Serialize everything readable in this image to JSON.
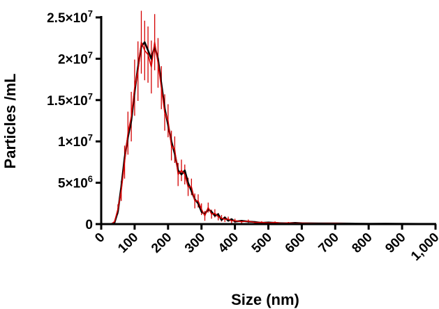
{
  "chart_data": {
    "type": "line",
    "xlabel": "Size (nm)",
    "ylabel": "Particles /mL",
    "xlim": [
      0,
      1000
    ],
    "ylim": [
      0,
      25000000
    ],
    "x_ticks": [
      0,
      100,
      200,
      300,
      400,
      500,
      600,
      700,
      800,
      900,
      1000
    ],
    "x_tick_labels": [
      "0",
      "100",
      "200",
      "300",
      "400",
      "500",
      "600",
      "700",
      "800",
      "900",
      "1,000"
    ],
    "y_ticks": [
      0,
      5000000,
      10000000,
      15000000,
      20000000,
      25000000
    ],
    "y_tick_labels": [
      "0",
      "5×10",
      "1×10",
      "1.5×10",
      "2×10",
      "2.5×10"
    ],
    "y_tick_exponents": [
      "",
      "6",
      "7",
      "7",
      "7",
      "7"
    ],
    "grid": false,
    "series": [
      {
        "color": "#000000",
        "x": [
          0,
          30,
          40,
          50,
          60,
          70,
          80,
          90,
          100,
          110,
          120,
          130,
          140,
          150,
          160,
          170,
          180,
          190,
          200,
          210,
          220,
          230,
          240,
          250,
          260,
          270,
          280,
          290,
          300,
          310,
          320,
          330,
          340,
          350,
          360,
          370,
          380,
          390,
          400,
          420,
          440,
          460,
          480,
          500,
          520,
          540,
          560,
          580,
          600,
          650,
          700,
          750,
          800,
          850,
          900,
          950,
          1000
        ],
        "y": [
          0,
          0,
          200000,
          1500000,
          4500000,
          8000000,
          10500000,
          12500000,
          16000000,
          19000000,
          21500000,
          22000000,
          21000000,
          20000000,
          21500000,
          20000000,
          17000000,
          14000000,
          12000000,
          10000000,
          8500000,
          6500000,
          6000000,
          6500000,
          5000000,
          4000000,
          3000000,
          2500000,
          1500000,
          1200000,
          1800000,
          1500000,
          1000000,
          1200000,
          500000,
          800000,
          400000,
          600000,
          300000,
          400000,
          300000,
          250000,
          150000,
          200000,
          150000,
          100000,
          100000,
          150000,
          100000,
          80000,
          80000,
          60000,
          40000,
          50000,
          40000,
          30000,
          30000
        ]
      },
      {
        "color": "#d40000",
        "x": [
          0,
          30,
          40,
          50,
          60,
          70,
          80,
          90,
          100,
          110,
          120,
          130,
          140,
          150,
          160,
          170,
          180,
          190,
          200,
          210,
          220,
          230,
          240,
          250,
          260,
          270,
          280,
          290,
          300,
          310,
          320,
          330,
          340,
          350,
          360,
          370,
          380,
          390,
          400,
          420,
          440,
          460,
          480,
          500,
          520,
          540,
          560,
          580,
          600,
          650,
          700,
          750,
          800,
          850,
          900,
          950,
          1000
        ],
        "y": [
          0,
          0,
          300000,
          1800000,
          4000000,
          7500000,
          11000000,
          13000000,
          16500000,
          18500000,
          22000000,
          21000000,
          20500000,
          19000000,
          22000000,
          19500000,
          16500000,
          13500000,
          12500000,
          9500000,
          9000000,
          6000000,
          6500000,
          6000000,
          4500000,
          4500000,
          2800000,
          2800000,
          1800000,
          1000000,
          2000000,
          1200000,
          1300000,
          900000,
          700000,
          600000,
          600000,
          400000,
          400000,
          300000,
          350000,
          200000,
          200000,
          150000,
          200000,
          100000,
          150000,
          100000,
          120000,
          80000,
          100000,
          50000,
          60000,
          40000,
          50000,
          30000,
          30000
        ],
        "error": [
          0,
          0,
          150000,
          600000,
          1200000,
          2000000,
          2600000,
          3000000,
          3400000,
          3600000,
          3800000,
          3600000,
          3400000,
          3200000,
          3400000,
          3000000,
          2600000,
          2200000,
          2000000,
          1800000,
          1600000,
          1400000,
          1300000,
          1200000,
          1100000,
          1000000,
          900000,
          800000,
          700000,
          600000,
          600000,
          550000,
          500000,
          450000,
          400000,
          350000,
          300000,
          300000,
          250000,
          200000,
          200000,
          150000,
          150000,
          120000,
          120000,
          100000,
          100000,
          90000,
          80000,
          70000,
          60000,
          50000,
          50000,
          40000,
          40000,
          30000,
          30000
        ]
      }
    ]
  }
}
